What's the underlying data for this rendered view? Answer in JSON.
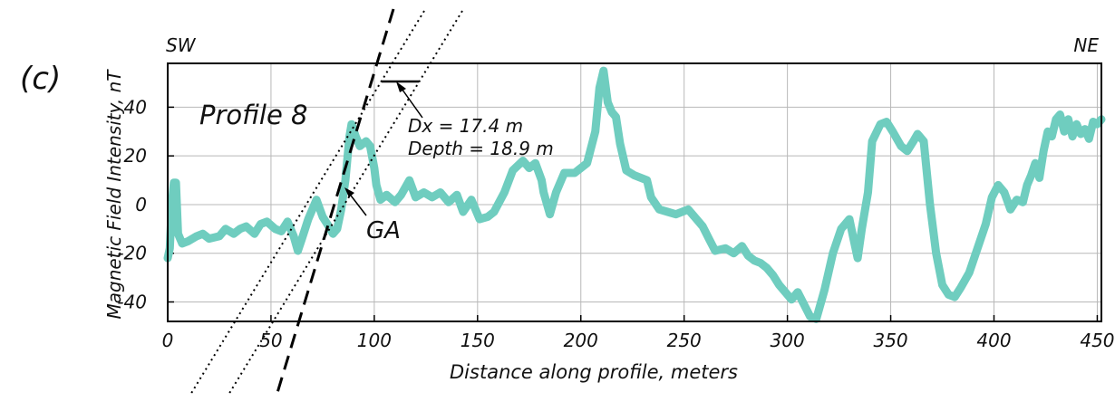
{
  "panel_label": "(c)",
  "chart_data": {
    "type": "line",
    "title": "",
    "xlabel": "Distance along profile, meters",
    "ylabel": "Magnetic Field Intensity, nT",
    "xlim": [
      0,
      452
    ],
    "ylim": [
      -48,
      58
    ],
    "x_ticks": [
      0,
      50,
      100,
      150,
      200,
      250,
      300,
      350,
      400,
      450
    ],
    "y_ticks": [
      -40,
      -20,
      0,
      20,
      40
    ],
    "grid": true,
    "line_color": "#6fcdbf",
    "corner_labels": {
      "left": "SW",
      "right": "NE"
    },
    "annotations": {
      "profile": "Profile 8",
      "dx": "Dx = 17.4 m",
      "depth": "Depth = 18.9  m",
      "ga": "GA"
    },
    "series": [
      {
        "values": [
          [
            0,
            -22
          ],
          [
            1,
            -18
          ],
          [
            2,
            0
          ],
          [
            3,
            9
          ],
          [
            4,
            9
          ],
          [
            5,
            -12
          ],
          [
            7,
            -16
          ],
          [
            10,
            -15
          ],
          [
            14,
            -13
          ],
          [
            17,
            -12
          ],
          [
            20,
            -14
          ],
          [
            25,
            -13
          ],
          [
            28,
            -10
          ],
          [
            32,
            -12
          ],
          [
            35,
            -10
          ],
          [
            38,
            -9
          ],
          [
            42,
            -12
          ],
          [
            45,
            -8
          ],
          [
            48,
            -7
          ],
          [
            52,
            -10
          ],
          [
            55,
            -11
          ],
          [
            58,
            -7
          ],
          [
            61,
            -13
          ],
          [
            63,
            -19
          ],
          [
            65,
            -14
          ],
          [
            68,
            -6
          ],
          [
            72,
            2
          ],
          [
            75,
            -5
          ],
          [
            78,
            -9
          ],
          [
            80,
            -12
          ],
          [
            82,
            -10
          ],
          [
            84,
            -2
          ],
          [
            86,
            10
          ],
          [
            88,
            28
          ],
          [
            89,
            33
          ],
          [
            91,
            28
          ],
          [
            93,
            24
          ],
          [
            96,
            26
          ],
          [
            98,
            24
          ],
          [
            100,
            15
          ],
          [
            101,
            8
          ],
          [
            103,
            2
          ],
          [
            106,
            4
          ],
          [
            110,
            1
          ],
          [
            113,
            4
          ],
          [
            117,
            10
          ],
          [
            120,
            3
          ],
          [
            124,
            5
          ],
          [
            128,
            3
          ],
          [
            132,
            5
          ],
          [
            136,
            1
          ],
          [
            140,
            4
          ],
          [
            143,
            -3
          ],
          [
            147,
            2
          ],
          [
            151,
            -6
          ],
          [
            155,
            -5
          ],
          [
            158,
            -3
          ],
          [
            163,
            5
          ],
          [
            167,
            14
          ],
          [
            172,
            18
          ],
          [
            175,
            15
          ],
          [
            178,
            17
          ],
          [
            181,
            10
          ],
          [
            182,
            5
          ],
          [
            185,
            -4
          ],
          [
            188,
            5
          ],
          [
            192,
            13
          ],
          [
            197,
            13
          ],
          [
            200,
            15
          ],
          [
            203,
            17
          ],
          [
            207,
            30
          ],
          [
            209,
            48
          ],
          [
            211,
            55
          ],
          [
            213,
            42
          ],
          [
            215,
            38
          ],
          [
            217,
            36
          ],
          [
            219,
            25
          ],
          [
            222,
            14
          ],
          [
            226,
            12
          ],
          [
            232,
            10
          ],
          [
            234,
            3
          ],
          [
            238,
            -2
          ],
          [
            242,
            -3
          ],
          [
            246,
            -4
          ],
          [
            252,
            -2
          ],
          [
            256,
            -6
          ],
          [
            259,
            -9
          ],
          [
            262,
            -14
          ],
          [
            265,
            -19
          ],
          [
            270,
            -18
          ],
          [
            274,
            -20
          ],
          [
            278,
            -17
          ],
          [
            281,
            -21
          ],
          [
            284,
            -23
          ],
          [
            287,
            -24
          ],
          [
            290,
            -26
          ],
          [
            293,
            -29
          ],
          [
            296,
            -33
          ],
          [
            299,
            -36
          ],
          [
            302,
            -39
          ],
          [
            305,
            -36
          ],
          [
            308,
            -41
          ],
          [
            311,
            -46
          ],
          [
            314,
            -47
          ],
          [
            318,
            -35
          ],
          [
            322,
            -20
          ],
          [
            326,
            -10
          ],
          [
            330,
            -6
          ],
          [
            332,
            -14
          ],
          [
            334,
            -22
          ],
          [
            336,
            -10
          ],
          [
            339,
            5
          ],
          [
            341,
            26
          ],
          [
            345,
            33
          ],
          [
            348,
            34
          ],
          [
            351,
            30
          ],
          [
            355,
            24
          ],
          [
            358,
            22
          ],
          [
            361,
            26
          ],
          [
            363,
            29
          ],
          [
            366,
            26
          ],
          [
            369,
            0
          ],
          [
            372,
            -20
          ],
          [
            375,
            -33
          ],
          [
            378,
            -37
          ],
          [
            381,
            -38
          ],
          [
            384,
            -34
          ],
          [
            388,
            -28
          ],
          [
            392,
            -18
          ],
          [
            396,
            -8
          ],
          [
            399,
            3
          ],
          [
            402,
            8
          ],
          [
            405,
            5
          ],
          [
            408,
            -2
          ],
          [
            411,
            2
          ],
          [
            414,
            1
          ],
          [
            416,
            8
          ],
          [
            418,
            12
          ],
          [
            420,
            17
          ],
          [
            422,
            11
          ],
          [
            424,
            22
          ],
          [
            426,
            30
          ],
          [
            428,
            28
          ],
          [
            430,
            35
          ],
          [
            432,
            37
          ],
          [
            434,
            30
          ],
          [
            436,
            35
          ],
          [
            438,
            28
          ],
          [
            440,
            33
          ],
          [
            442,
            29
          ],
          [
            444,
            31
          ],
          [
            446,
            27
          ],
          [
            448,
            34
          ],
          [
            450,
            33
          ],
          [
            452,
            35
          ]
        ]
      }
    ]
  }
}
